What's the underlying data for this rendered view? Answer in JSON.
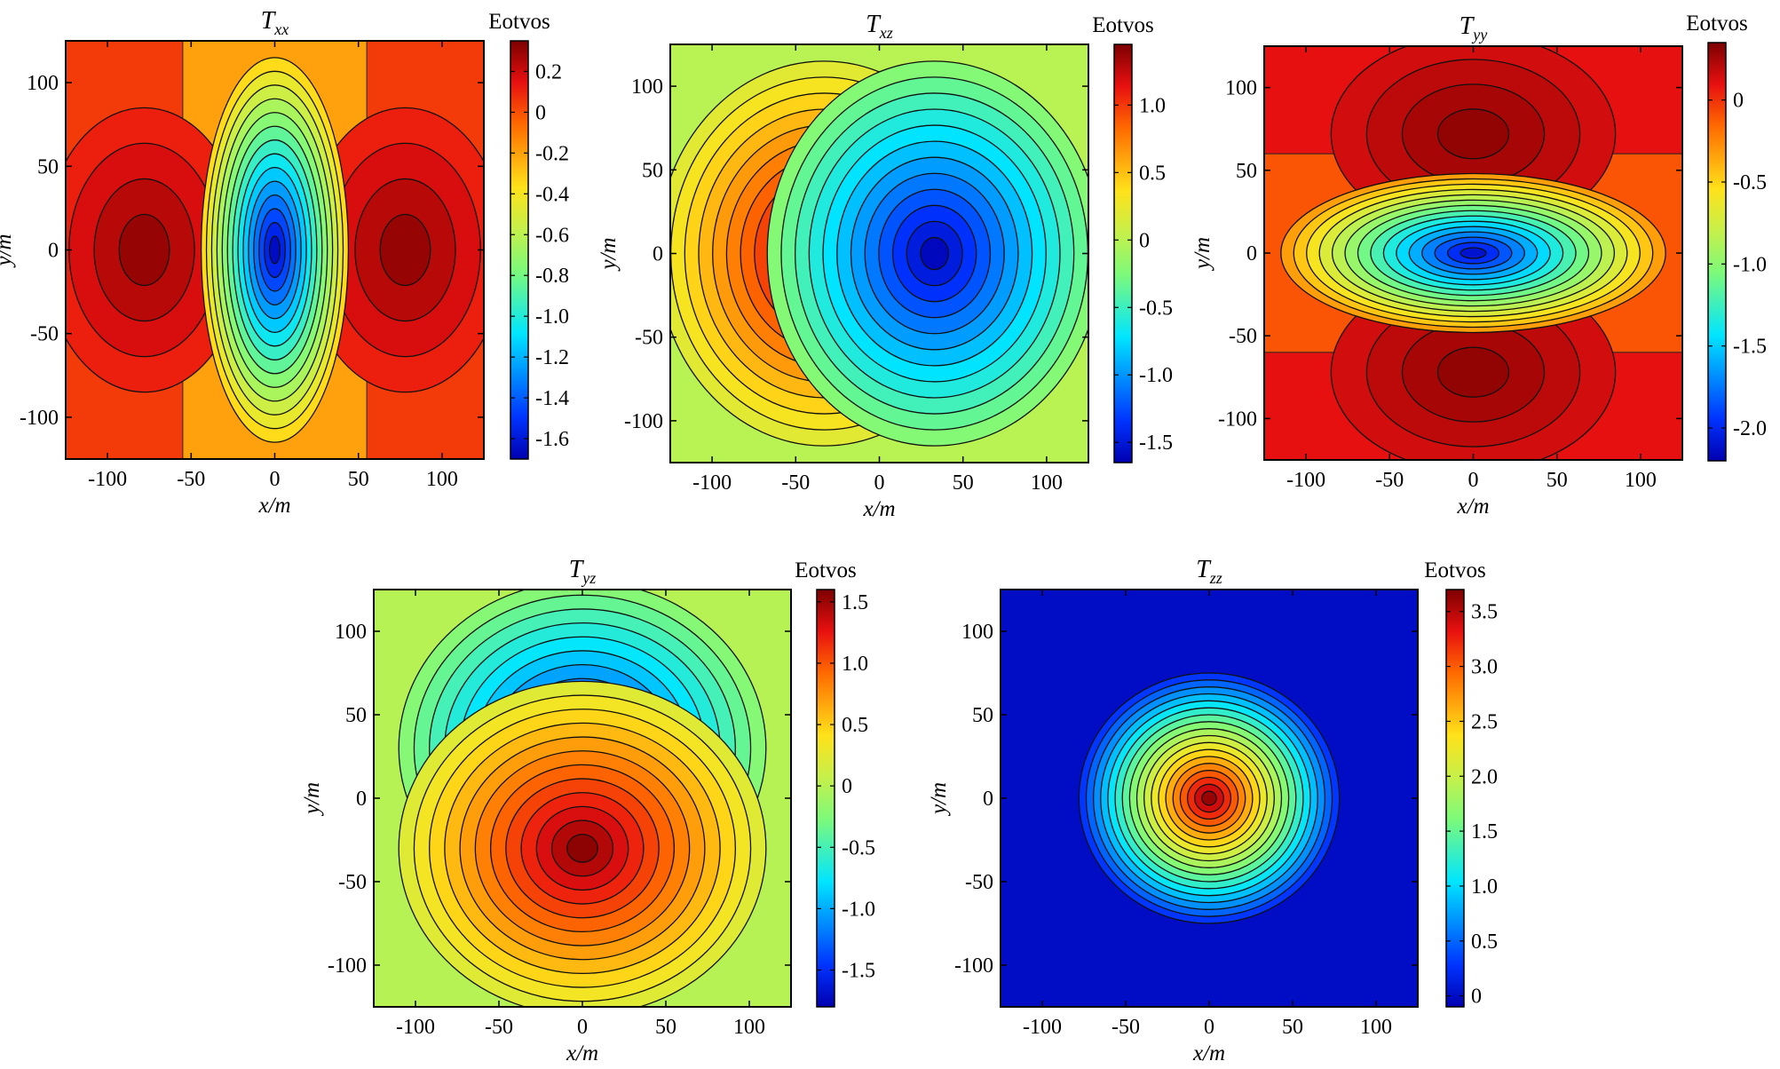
{
  "figure": {
    "units_label": "Eotvos"
  },
  "chart_data": [
    {
      "type": "heatmap",
      "id": "Txx",
      "title": "T",
      "title_sub": "xx",
      "pattern": "txx",
      "xlabel": "x/m",
      "ylabel": "y/m",
      "xlim": [
        -125,
        125
      ],
      "ylim": [
        -125,
        125
      ],
      "xticks": [
        -100,
        -50,
        0,
        50,
        100
      ],
      "yticks": [
        -100,
        -50,
        0,
        50,
        100
      ],
      "colorbar": {
        "label": "Eotvos",
        "min": -1.7,
        "max": 0.35,
        "ticks": [
          0.2,
          0,
          -0.2,
          -0.4,
          -0.6,
          -0.8,
          -1.0,
          -1.2,
          -1.4,
          -1.6
        ],
        "tick_labels": [
          "0.2",
          "0",
          "-0.2",
          "-0.4",
          "-0.6",
          "-0.8",
          "-1.0",
          "-1.2",
          "-1.4",
          "-1.6"
        ]
      },
      "extrema": {
        "min": {
          "x": 0,
          "y": 0,
          "value": -1.65
        },
        "max": [
          {
            "x": -78,
            "y": 0,
            "value": 0.3
          },
          {
            "x": 78,
            "y": 0,
            "value": 0.3
          }
        ]
      }
    },
    {
      "type": "heatmap",
      "id": "Txz",
      "title": "T",
      "title_sub": "xz",
      "pattern": "dipole-x",
      "xlabel": "x/m",
      "ylabel": "y/m",
      "xlim": [
        -125,
        125
      ],
      "ylim": [
        -125,
        125
      ],
      "xticks": [
        -100,
        -50,
        0,
        50,
        100
      ],
      "yticks": [
        -100,
        -50,
        0,
        50,
        100
      ],
      "colorbar": {
        "label": "Eotvos",
        "min": -1.65,
        "max": 1.45,
        "ticks": [
          1.0,
          0.5,
          0,
          -0.5,
          -1.0,
          -1.5
        ],
        "tick_labels": [
          "1.0",
          "0.5",
          "0",
          "-0.5",
          "-1.0",
          "-1.5"
        ]
      },
      "extrema": {
        "max": {
          "x": -33,
          "y": 0,
          "value": 1.4
        },
        "min": {
          "x": 33,
          "y": 0,
          "value": -1.6
        }
      }
    },
    {
      "type": "heatmap",
      "id": "Tyy",
      "title": "T",
      "title_sub": "yy",
      "pattern": "tyy",
      "xlabel": "x/m",
      "ylabel": "y/m",
      "xlim": [
        -125,
        125
      ],
      "ylim": [
        -125,
        125
      ],
      "xticks": [
        -100,
        -50,
        0,
        50,
        100
      ],
      "yticks": [
        -100,
        -50,
        0,
        50,
        100
      ],
      "colorbar": {
        "label": "Eotvos",
        "min": -2.2,
        "max": 0.35,
        "ticks": [
          0,
          -0.5,
          -1.0,
          -1.5,
          -2.0
        ],
        "tick_labels": [
          "0",
          "-0.5",
          "-1.0",
          "-1.5",
          "-2.0"
        ]
      },
      "extrema": {
        "min": {
          "x": 0,
          "y": 0,
          "value": -2.1
        },
        "max": [
          {
            "x": 0,
            "y": 72,
            "value": 0.3
          },
          {
            "x": 0,
            "y": -72,
            "value": 0.3
          }
        ]
      }
    },
    {
      "type": "heatmap",
      "id": "Tyz",
      "title": "T",
      "title_sub": "yz",
      "pattern": "dipole-y",
      "xlabel": "x/m",
      "ylabel": "y/m",
      "xlim": [
        -125,
        125
      ],
      "ylim": [
        -125,
        125
      ],
      "xticks": [
        -100,
        -50,
        0,
        50,
        100
      ],
      "yticks": [
        -100,
        -50,
        0,
        50,
        100
      ],
      "colorbar": {
        "label": "Eotvos",
        "min": -1.8,
        "max": 1.6,
        "ticks": [
          1.5,
          1.0,
          0.5,
          0,
          -0.5,
          -1.0,
          -1.5
        ],
        "tick_labels": [
          "1.5",
          "1.0",
          "0.5",
          "0",
          "-0.5",
          "-1.0",
          "-1.5"
        ]
      },
      "extrema": {
        "min": {
          "x": 0,
          "y": 30,
          "value": -1.7
        },
        "max": {
          "x": 0,
          "y": -30,
          "value": 1.55
        }
      }
    },
    {
      "type": "heatmap",
      "id": "Tzz",
      "title": "T",
      "title_sub": "zz",
      "pattern": "monopole",
      "xlabel": "x/m",
      "ylabel": "y/m",
      "xlim": [
        -125,
        125
      ],
      "ylim": [
        -125,
        125
      ],
      "xticks": [
        -100,
        -50,
        0,
        50,
        100
      ],
      "yticks": [
        -100,
        -50,
        0,
        50,
        100
      ],
      "colorbar": {
        "label": "Eotvos",
        "min": -0.1,
        "max": 3.7,
        "ticks": [
          3.5,
          3.0,
          2.5,
          2.0,
          1.5,
          1.0,
          0.5,
          0
        ],
        "tick_labels": [
          "3.5",
          "3.0",
          "2.5",
          "2.0",
          "1.5",
          "1.0",
          "0.5",
          "0"
        ]
      },
      "extrema": {
        "max": {
          "x": 0,
          "y": 0,
          "value": 3.6
        }
      }
    }
  ]
}
